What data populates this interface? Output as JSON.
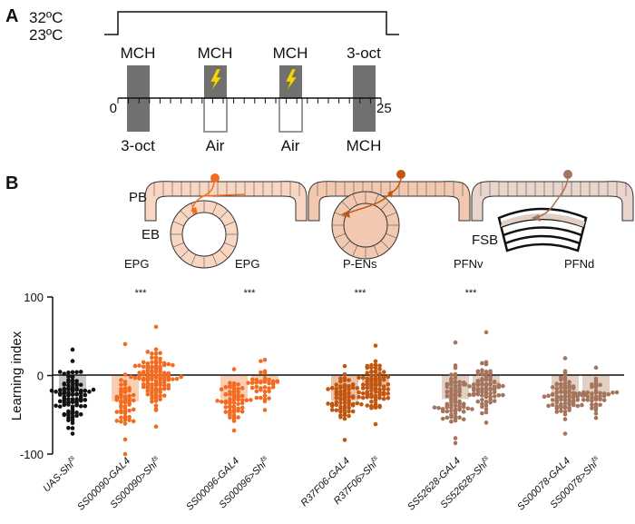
{
  "panel_a": {
    "label": "A",
    "temp_high": "32ºC",
    "temp_low": "23ºC",
    "top_labels": [
      "MCH",
      "MCH",
      "MCH",
      "3-oct"
    ],
    "bottom_labels": [
      "3-oct",
      "Air",
      "Air",
      "MCH"
    ],
    "axis_start": "0",
    "axis_end": "25",
    "shock_icon": "lightning-bolt-icon"
  },
  "panel_b": {
    "label": "B",
    "region_labels": {
      "pb": "PB",
      "eb": "EB",
      "fsb": "FSB"
    },
    "neuron_labels": [
      "EPG",
      "EPG",
      "P-ENs",
      "PFNv",
      "PFNd"
    ],
    "significance": [
      "***",
      "***",
      "***",
      "***"
    ]
  },
  "colors": {
    "black": "#111111",
    "orange_light": "#f26b21",
    "orange_dark": "#c0560f",
    "tan": "#a5745c",
    "bar_orange": "#f9cfb4",
    "bar_orange_dark": "#ebc2a6",
    "bar_tan": "#e2d0c5",
    "bar_gray": "#c8c8c8",
    "shock": "#f2d411"
  },
  "chart_data": {
    "type": "scatter",
    "title": "",
    "xlabel": "",
    "ylabel": "Learning index",
    "ylim": [
      -100,
      100
    ],
    "yticks": [
      -100,
      0,
      100
    ],
    "categories": [
      "UAS-Shi^ts",
      "SS00090-GAL4",
      "SS00090>Shi^ts",
      "SS00096-GAL4",
      "SS00096>Shi^ts",
      "R37F06-GAL4",
      "R37F06>Shi^ts",
      "SS52628-GAL4",
      "SS52628>Shi^ts",
      "SS00078-GAL4",
      "SS00078>Shi^ts"
    ],
    "series": [
      {
        "name": "UAS-Shi^ts",
        "label_main": "UAS-Shi",
        "color": "#111111",
        "bar_color": "#c8c8c8",
        "mean": -25,
        "n": 95,
        "spread": 24,
        "min": -74,
        "max": 33
      },
      {
        "name": "SS00090-GAL4",
        "label_main": "SS00090-GAL4",
        "color": "#f26b21",
        "bar_color": "#f9cfb4",
        "mean": -33,
        "n": 55,
        "spread": 27,
        "min": -100,
        "max": 40
      },
      {
        "name": "SS00090>Shi^ts",
        "label_main": "SS00090>Shi",
        "color": "#f26b21",
        "bar_color": "#f9cfb4",
        "mean": -5,
        "n": 110,
        "spread": 22,
        "min": -65,
        "max": 62
      },
      {
        "name": "SS00096-GAL4",
        "label_main": "SS00096-GAL4",
        "color": "#f26b21",
        "bar_color": "#f9cfb4",
        "mean": -30,
        "n": 60,
        "spread": 18,
        "min": -70,
        "max": 8
      },
      {
        "name": "SS00096>Shi^ts",
        "label_main": "SS00096>Shi",
        "color": "#f26b21",
        "bar_color": "#f9cfb4",
        "mean": -9,
        "n": 38,
        "spread": 15,
        "min": -44,
        "max": 20
      },
      {
        "name": "R37F06-GAL4",
        "label_main": "R37F06-GAL4",
        "color": "#c0560f",
        "bar_color": "#ebc2a6",
        "mean": -32,
        "n": 70,
        "spread": 20,
        "min": -82,
        "max": 12
      },
      {
        "name": "R37F06>Shi^ts",
        "label_main": "R37F06>Shi",
        "color": "#c0560f",
        "bar_color": "#ebc2a6",
        "mean": -15,
        "n": 85,
        "spread": 21,
        "min": -62,
        "max": 38
      },
      {
        "name": "SS52628-GAL4",
        "label_main": "SS52628-GAL4",
        "color": "#a5745c",
        "bar_color": "#e2d0c5",
        "mean": -30,
        "n": 80,
        "spread": 27,
        "min": -86,
        "max": 42
      },
      {
        "name": "SS52628>Shi^ts",
        "label_main": "SS52628>Shi",
        "color": "#a5745c",
        "bar_color": "#e2d0c5",
        "mean": -15,
        "n": 80,
        "spread": 22,
        "min": -60,
        "max": 55
      },
      {
        "name": "SS00078-GAL4",
        "label_main": "SS00078-GAL4",
        "color": "#a5745c",
        "bar_color": "#e2d0c5",
        "mean": -25,
        "n": 80,
        "spread": 20,
        "min": -74,
        "max": 22
      },
      {
        "name": "SS00078>Shi^ts",
        "label_main": "SS00078>Shi",
        "color": "#a5745c",
        "bar_color": "#e2d0c5",
        "mean": -24,
        "n": 45,
        "spread": 14,
        "min": -54,
        "max": 10
      }
    ],
    "superscript": "ts",
    "significance_groups": [
      [
        1,
        2
      ],
      [
        3,
        4
      ],
      [
        5,
        6
      ],
      [
        7,
        8
      ]
    ]
  }
}
